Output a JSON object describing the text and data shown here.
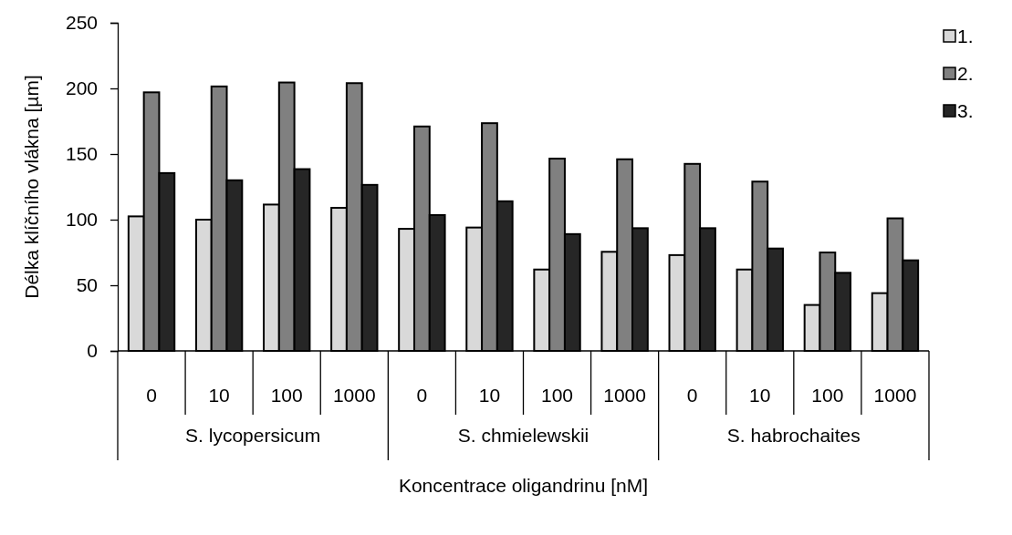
{
  "chart_data": {
    "type": "bar",
    "xlabel": "Koncentrace oligandrinu [nM]",
    "ylabel": "Délka klíčního vlákna [µm]",
    "categories": [
      "0",
      "10",
      "100",
      "1000",
      "0",
      "10",
      "100",
      "1000",
      "0",
      "10",
      "100",
      "1000"
    ],
    "annotations": [
      "S. lycopersicum",
      "S. chmielewskii",
      "S. habrochaites"
    ],
    "series": [
      {
        "name": "1.",
        "color": "#d9d9d9",
        "values": [
          102.5,
          100,
          111.5,
          109,
          93,
          94,
          62,
          75.5,
          73,
          62,
          35,
          44
        ]
      },
      {
        "name": "2.",
        "color": "#808080",
        "values": [
          197,
          201.5,
          204.5,
          204,
          171,
          173.5,
          146.5,
          146,
          142.5,
          129,
          75,
          101
        ]
      },
      {
        "name": "3.",
        "color": "#262626",
        "values": [
          135.5,
          130,
          138.5,
          126.5,
          103.5,
          114,
          89,
          93.5,
          93.5,
          78,
          59.5,
          69
        ]
      }
    ],
    "ylim": [
      0,
      250
    ],
    "yticks": [
      0,
      50,
      100,
      150,
      200,
      250
    ],
    "grid": false,
    "legend": "top right"
  }
}
